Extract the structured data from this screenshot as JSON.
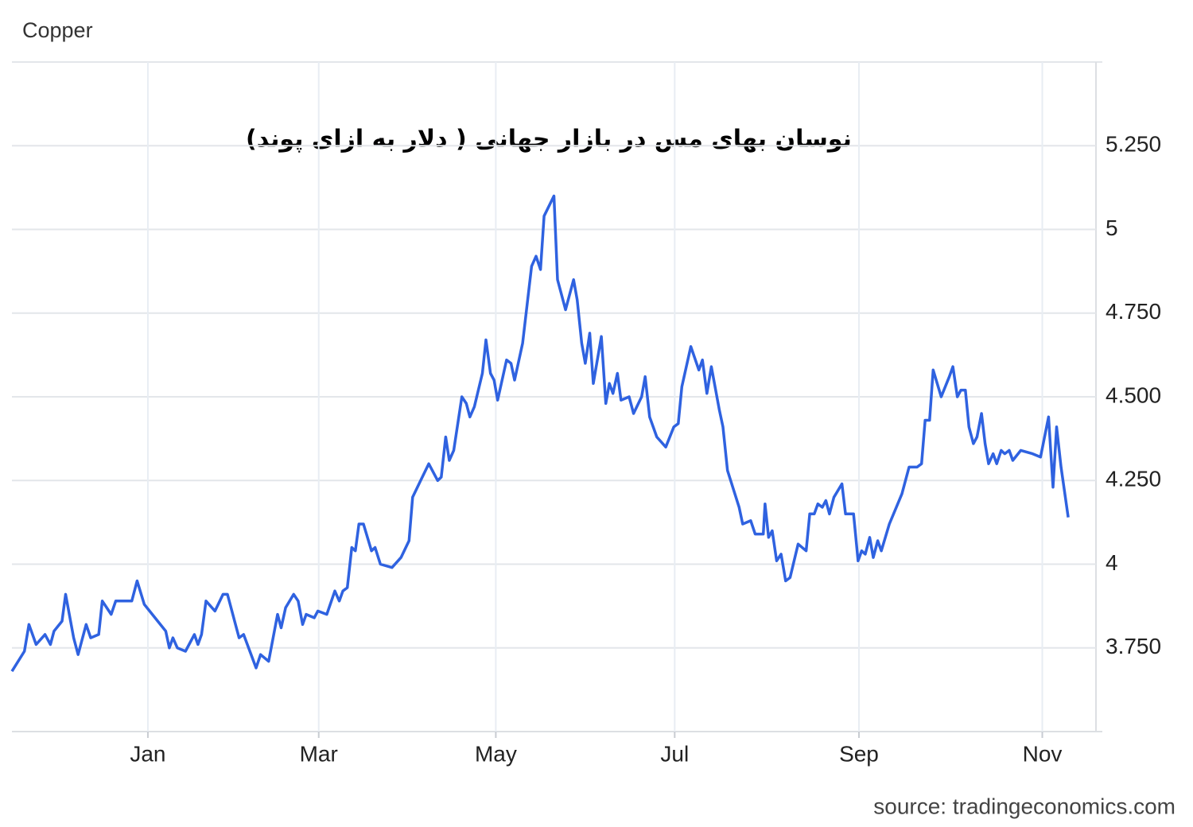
{
  "chart_data": {
    "type": "line",
    "title": "Copper",
    "annotation": "نوسان بهای مس در بازار جهانی ( دلار به ازای پوند)",
    "source": "source: tradingeconomics.com",
    "color": "#2f62e0",
    "grid": true,
    "xlim": [
      -1.52,
      10.6
    ],
    "ylim": [
      3.5,
      5.5
    ],
    "xticks": [
      {
        "value": 0,
        "label": "Jan"
      },
      {
        "value": 1.91,
        "label": "Mar"
      },
      {
        "value": 3.89,
        "label": "May"
      },
      {
        "value": 5.89,
        "label": "Jul"
      },
      {
        "value": 7.95,
        "label": "Sep"
      },
      {
        "value": 10,
        "label": "Nov"
      }
    ],
    "yticks": [
      {
        "value": 3.75,
        "label": "3.750"
      },
      4,
      {
        "value": 4.25,
        "label": "4.250"
      },
      {
        "value": 4.5,
        "label": "4.500"
      },
      {
        "value": 4.75,
        "label": "4.750"
      },
      5,
      {
        "value": 5.25,
        "label": "5.250"
      }
    ],
    "x": [
      -1.52,
      -1.38,
      -1.33,
      -1.25,
      -1.15,
      -1.09,
      -1.05,
      -0.96,
      -0.92,
      -0.83,
      -0.78,
      -0.69,
      -0.64,
      -0.55,
      -0.51,
      -0.41,
      -0.36,
      -0.18,
      -0.12,
      -0.04,
      0.11,
      0.2,
      0.24,
      0.28,
      0.33,
      0.42,
      0.52,
      0.56,
      0.6,
      0.65,
      0.75,
      0.84,
      0.89,
      0.98,
      1.02,
      1.07,
      1.21,
      1.26,
      1.35,
      1.45,
      1.49,
      1.54,
      1.63,
      1.68,
      1.73,
      1.77,
      1.86,
      1.9,
      2.0,
      2.09,
      2.14,
      2.18,
      2.23,
      2.28,
      2.32,
      2.36,
      2.41,
      2.5,
      2.54,
      2.6,
      2.73,
      2.83,
      2.92,
      2.96,
      3.05,
      3.14,
      3.24,
      3.28,
      3.33,
      3.37,
      3.42,
      3.51,
      3.56,
      3.6,
      3.65,
      3.74,
      3.78,
      3.83,
      3.87,
      3.91,
      4.01,
      4.06,
      4.1,
      4.19,
      4.29,
      4.34,
      4.39,
      4.43,
      4.54,
      4.58,
      4.67,
      4.76,
      4.8,
      4.85,
      4.89,
      4.94,
      4.98,
      5.07,
      5.12,
      5.16,
      5.2,
      5.25,
      5.29,
      5.38,
      5.43,
      5.52,
      5.56,
      5.61,
      5.69,
      5.79,
      5.88,
      5.93,
      5.97,
      6.07,
      6.16,
      6.2,
      6.25,
      6.3,
      6.39,
      6.43,
      6.48,
      6.61,
      6.65,
      6.74,
      6.79,
      6.88,
      6.9,
      6.94,
      6.98,
      7.03,
      7.08,
      7.13,
      7.18,
      7.27,
      7.36,
      7.4,
      7.45,
      7.49,
      7.54,
      7.58,
      7.62,
      7.67,
      7.76,
      7.8,
      7.89,
      7.94,
      7.98,
      8.02,
      8.07,
      8.11,
      8.16,
      8.2,
      8.29,
      8.43,
      8.51,
      8.6,
      8.65,
      8.69,
      8.74,
      8.78,
      8.87,
      8.96,
      9.0,
      9.05,
      9.09,
      9.14,
      9.18,
      9.23,
      9.27,
      9.32,
      9.36,
      9.4,
      9.45,
      9.49,
      9.54,
      9.58,
      9.63,
      9.67,
      9.76,
      9.89,
      9.98,
      10.07,
      10.12,
      10.16,
      10.21,
      10.29
    ],
    "values": [
      3.68,
      3.74,
      3.82,
      3.76,
      3.79,
      3.76,
      3.8,
      3.83,
      3.91,
      3.78,
      3.73,
      3.82,
      3.78,
      3.79,
      3.89,
      3.85,
      3.89,
      3.89,
      3.95,
      3.88,
      3.83,
      3.8,
      3.75,
      3.78,
      3.75,
      3.74,
      3.79,
      3.76,
      3.79,
      3.89,
      3.86,
      3.91,
      3.91,
      3.82,
      3.78,
      3.79,
      3.69,
      3.73,
      3.71,
      3.85,
      3.81,
      3.87,
      3.91,
      3.89,
      3.82,
      3.85,
      3.84,
      3.86,
      3.85,
      3.92,
      3.89,
      3.92,
      3.93,
      4.05,
      4.04,
      4.12,
      4.12,
      4.04,
      4.05,
      4.0,
      3.99,
      4.02,
      4.07,
      4.2,
      4.25,
      4.3,
      4.25,
      4.26,
      4.38,
      4.31,
      4.34,
      4.5,
      4.48,
      4.44,
      4.47,
      4.57,
      4.67,
      4.57,
      4.55,
      4.49,
      4.61,
      4.6,
      4.55,
      4.66,
      4.89,
      4.92,
      4.88,
      5.04,
      5.1,
      4.85,
      4.76,
      4.85,
      4.79,
      4.66,
      4.6,
      4.69,
      4.54,
      4.68,
      4.48,
      4.54,
      4.51,
      4.57,
      4.49,
      4.5,
      4.45,
      4.5,
      4.56,
      4.44,
      4.38,
      4.35,
      4.41,
      4.42,
      4.53,
      4.65,
      4.58,
      4.61,
      4.51,
      4.59,
      4.46,
      4.41,
      4.28,
      4.17,
      4.12,
      4.13,
      4.09,
      4.09,
      4.18,
      4.08,
      4.1,
      4.01,
      4.03,
      3.95,
      3.96,
      4.06,
      4.04,
      4.15,
      4.15,
      4.18,
      4.17,
      4.19,
      4.15,
      4.2,
      4.24,
      4.15,
      4.15,
      4.01,
      4.04,
      4.03,
      4.08,
      4.02,
      4.07,
      4.04,
      4.12,
      4.21,
      4.29,
      4.29,
      4.3,
      4.43,
      4.43,
      4.58,
      4.5,
      4.56,
      4.59,
      4.5,
      4.52,
      4.52,
      4.41,
      4.36,
      4.38,
      4.45,
      4.36,
      4.3,
      4.33,
      4.3,
      4.34,
      4.33,
      4.34,
      4.31,
      4.34,
      4.33,
      4.32,
      4.44,
      4.23,
      4.41,
      4.29,
      4.14
    ]
  }
}
